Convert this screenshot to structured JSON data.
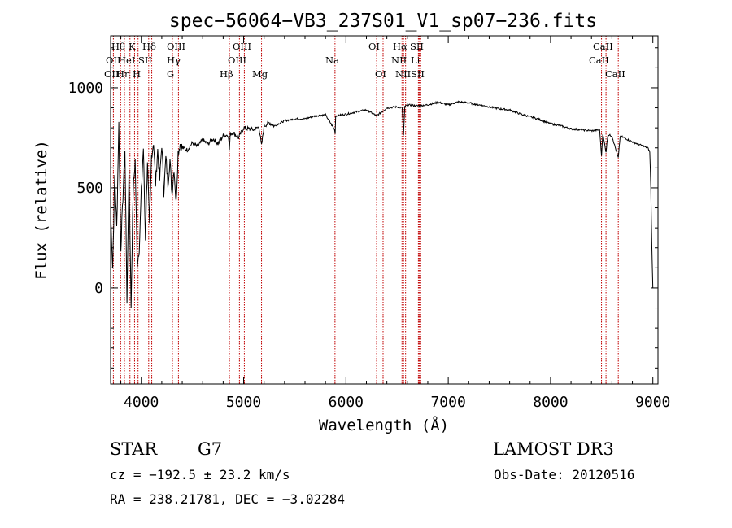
{
  "chart_data": {
    "type": "line",
    "title": "spec−56064−VB3_237S01_V1_sp07−236.fits",
    "xlabel": "Wavelength (Å)",
    "ylabel": "Flux (relative)",
    "xlim": [
      3700,
      9050
    ],
    "ylim": [
      -480,
      1260
    ],
    "xticks": [
      4000,
      5000,
      6000,
      7000,
      8000,
      9000
    ],
    "xtick_labels": [
      "4000",
      "5000",
      "6000",
      "7000",
      "8000",
      "9000"
    ],
    "yticks": [
      0,
      500,
      1000
    ],
    "ytick_labels": [
      "0",
      "500",
      "1000"
    ],
    "spectrum": {
      "name": "flux",
      "x": [
        3700,
        3720,
        3740,
        3760,
        3780,
        3800,
        3820,
        3840,
        3860,
        3880,
        3900,
        3920,
        3940,
        3960,
        3980,
        4000,
        4020,
        4040,
        4060,
        4080,
        4100,
        4120,
        4140,
        4160,
        4180,
        4200,
        4220,
        4240,
        4260,
        4280,
        4300,
        4320,
        4340,
        4360,
        4380,
        4400,
        4450,
        4500,
        4550,
        4600,
        4650,
        4700,
        4750,
        4800,
        4850,
        4861,
        4870,
        4900,
        4950,
        5000,
        5050,
        5100,
        5150,
        5175,
        5200,
        5250,
        5300,
        5400,
        5500,
        5600,
        5700,
        5800,
        5890,
        5895,
        5900,
        6000,
        6100,
        6200,
        6300,
        6400,
        6500,
        6550,
        6563,
        6575,
        6600,
        6700,
        6800,
        6900,
        7000,
        7100,
        7200,
        7300,
        7400,
        7500,
        7600,
        7700,
        7800,
        7900,
        8000,
        8100,
        8200,
        8300,
        8400,
        8480,
        8498,
        8510,
        8542,
        8560,
        8600,
        8662,
        8680,
        8700,
        8800,
        8900,
        8950,
        8970,
        8980,
        8990,
        9000
      ],
      "values": [
        380,
        100,
        560,
        300,
        820,
        200,
        450,
        690,
        -60,
        600,
        -90,
        480,
        640,
        120,
        200,
        480,
        700,
        250,
        640,
        300,
        660,
        730,
        520,
        690,
        540,
        720,
        480,
        650,
        520,
        640,
        470,
        600,
        420,
        680,
        720,
        700,
        690,
        725,
        705,
        740,
        718,
        745,
        720,
        760,
        765,
        690,
        770,
        775,
        750,
        800,
        795,
        790,
        805,
        710,
        810,
        825,
        810,
        835,
        845,
        845,
        860,
        865,
        790,
        770,
        860,
        868,
        880,
        890,
        860,
        900,
        905,
        900,
        760,
        905,
        915,
        910,
        915,
        928,
        915,
        930,
        925,
        915,
        905,
        895,
        890,
        870,
        855,
        840,
        820,
        810,
        795,
        790,
        785,
        790,
        660,
        770,
        680,
        765,
        760,
        650,
        755,
        755,
        730,
        710,
        700,
        680,
        500,
        200,
        0
      ]
    },
    "line_markers": [
      {
        "name": "O II",
        "wavelength": 3727
      },
      {
        "name": "Hθ",
        "wavelength": 3798
      },
      {
        "name": "Hη",
        "wavelength": 3835
      },
      {
        "name": "K",
        "wavelength": 3934
      },
      {
        "name": "He I",
        "wavelength": 3889
      },
      {
        "name": "H",
        "wavelength": 3968
      },
      {
        "name": "Hδ",
        "wavelength": 4102
      },
      {
        "name": "S II",
        "wavelength": 4072
      },
      {
        "name": "O III",
        "wavelength": 4363
      },
      {
        "name": "Hγ",
        "wavelength": 4340
      },
      {
        "name": "G",
        "wavelength": 4304
      },
      {
        "name": "Hβ",
        "wavelength": 4861
      },
      {
        "name": "O III",
        "wavelength": 4959
      },
      {
        "name": "O III",
        "wavelength": 5007
      },
      {
        "name": "Mg",
        "wavelength": 5175
      },
      {
        "name": "Na",
        "wavelength": 5893
      },
      {
        "name": "O I",
        "wavelength": 6300
      },
      {
        "name": "O I",
        "wavelength": 6363
      },
      {
        "name": "Hα",
        "wavelength": 6563
      },
      {
        "name": "N II",
        "wavelength": 6548
      },
      {
        "name": "N II",
        "wavelength": 6583
      },
      {
        "name": "S II",
        "wavelength": 6716
      },
      {
        "name": "Li",
        "wavelength": 6708
      },
      {
        "name": "S II",
        "wavelength": 6731
      },
      {
        "name": "Ca II",
        "wavelength": 8498
      },
      {
        "name": "Ca II",
        "wavelength": 8542
      },
      {
        "name": "Ca II",
        "wavelength": 8662
      }
    ]
  },
  "labels": {
    "OII": "OII",
    "Htheta": "Hθ",
    "Heta": "Hη",
    "K": "K",
    "HeI": "HeI",
    "H": "H",
    "Hdelta": "Hδ",
    "SII": "SII",
    "OIII": "OIII",
    "Hgamma": "Hγ",
    "G": "G",
    "Hbeta": "Hβ",
    "Mg": "Mg",
    "Na": "Na",
    "OI": "OI",
    "Halpha": "Hα",
    "NII": "NII",
    "Li": "Li",
    "CaII": "CaII"
  },
  "info": {
    "object_class": "STAR",
    "subclass": "G7",
    "survey": "LAMOST DR3",
    "redshift": "cz = −192.5 ± 23.2 km/s",
    "obs_date": "Obs-Date: 20120516",
    "coords": "RA = 238.21781, DEC =  −3.02284"
  }
}
